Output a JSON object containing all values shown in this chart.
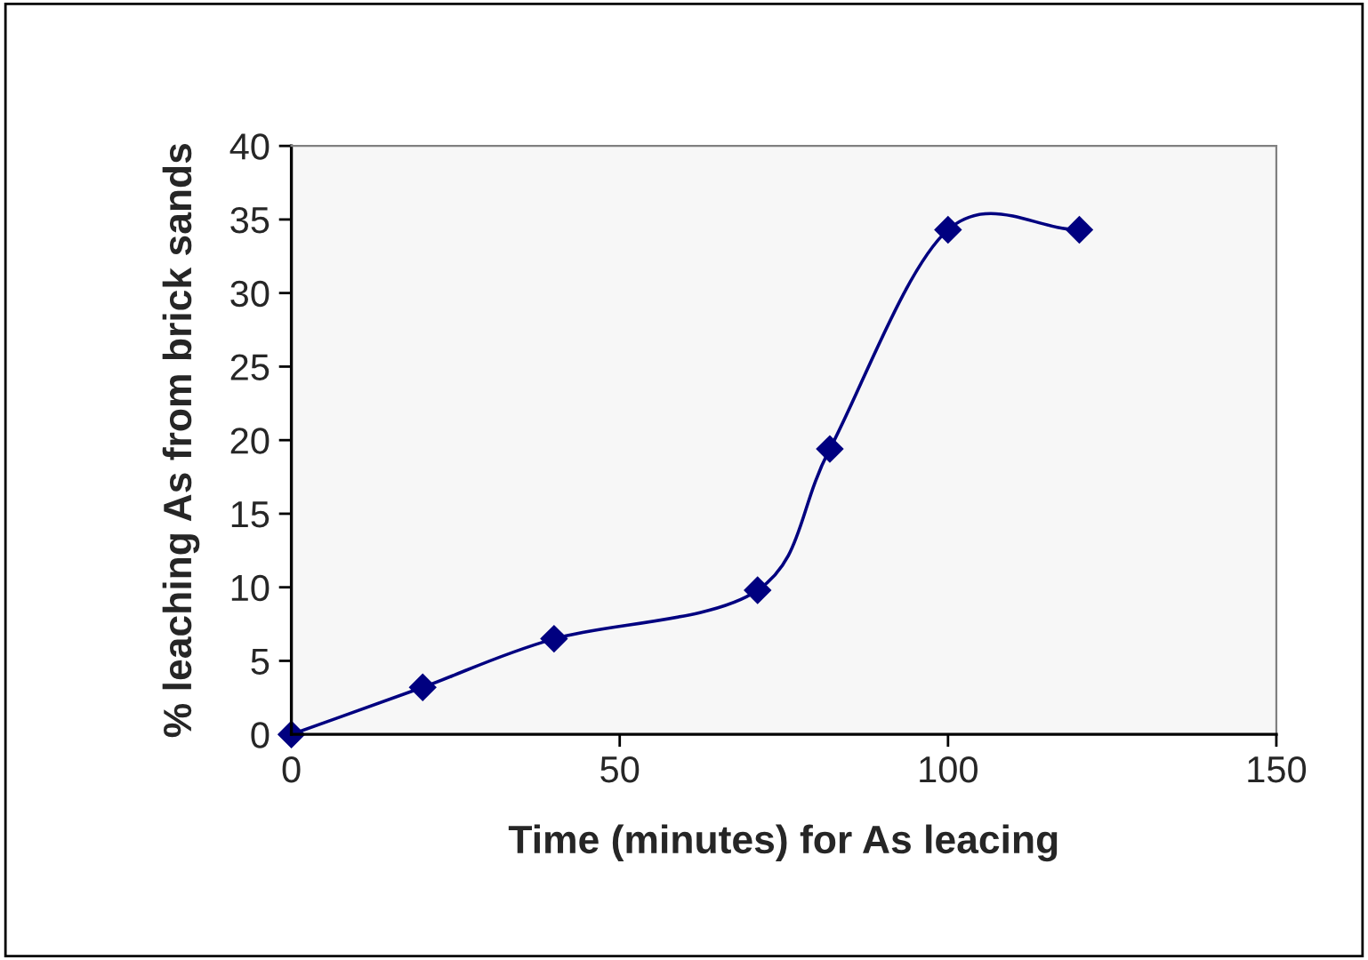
{
  "chart_data": {
    "type": "line",
    "xlabel": "Time (minutes) for As leacing",
    "ylabel": "% leaching As from brick sands",
    "x": [
      0,
      20,
      40,
      71,
      82,
      100,
      120
    ],
    "series": [
      {
        "color": "#000080",
        "values": [
          0,
          3.2,
          6.5,
          9.8,
          19.4,
          34.3,
          34.3
        ]
      }
    ],
    "xlim": [
      0,
      150
    ],
    "xticks": [
      0,
      50,
      100,
      150
    ],
    "ylim": [
      0,
      40
    ],
    "yticks": [
      0,
      5,
      10,
      15,
      20,
      25,
      30,
      35,
      40
    ],
    "marker": "diamond",
    "line_style": "solid",
    "grid": false,
    "legend": false
  }
}
